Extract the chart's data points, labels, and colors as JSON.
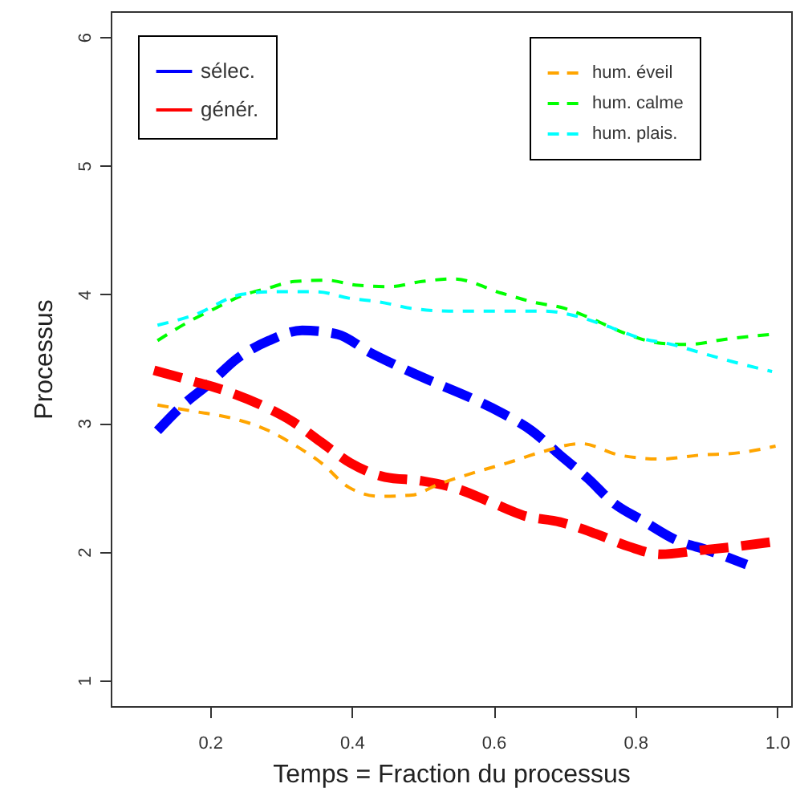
{
  "chart_data": {
    "type": "line",
    "xlabel": "Temps = Fraction du processus",
    "ylabel": "Processus",
    "xlim": [
      0.06,
      1.02
    ],
    "ylim": [
      0.8,
      6.2
    ],
    "xticks": [
      {
        "value": 0.2,
        "label": "0.2"
      },
      {
        "value": 0.4,
        "label": "0.4"
      },
      {
        "value": 0.6,
        "label": "0.6"
      },
      {
        "value": 0.8,
        "label": "0.8"
      },
      {
        "value": 1,
        "label": "1.0"
      }
    ],
    "yticks": [
      1,
      2,
      3,
      4,
      5,
      6
    ],
    "grid": false,
    "legend": "top",
    "series": [
      {
        "name": "sélec.",
        "color": "#0000ff",
        "line_style": "dashed",
        "x": [
          0.126,
          0.162,
          0.2,
          0.238,
          0.283,
          0.33,
          0.38,
          0.425,
          0.47,
          0.519,
          0.566,
          0.611,
          0.654,
          0.694,
          0.733,
          0.769,
          0.811,
          0.858,
          0.903,
          0.957
        ],
        "values": [
          2.94,
          3.14,
          3.31,
          3.5,
          3.64,
          3.72,
          3.69,
          3.55,
          3.43,
          3.31,
          3.2,
          3.08,
          2.94,
          2.75,
          2.57,
          2.38,
          2.24,
          2.09,
          2.01,
          1.9
        ]
      },
      {
        "name": "génér.",
        "color": "#ff0000",
        "line_style": "dashed",
        "x": [
          0.121,
          0.173,
          0.222,
          0.272,
          0.317,
          0.357,
          0.398,
          0.447,
          0.499,
          0.548,
          0.598,
          0.643,
          0.694,
          0.744,
          0.791,
          0.836,
          0.89,
          0.942,
          0.998
        ],
        "values": [
          3.41,
          3.33,
          3.25,
          3.14,
          3.01,
          2.85,
          2.69,
          2.58,
          2.55,
          2.49,
          2.38,
          2.28,
          2.23,
          2.14,
          2.04,
          1.98,
          2.01,
          2.04,
          2.08
        ]
      },
      {
        "name": "hum. éveil",
        "color": "#ffa500",
        "line_style": "dotted",
        "x": [
          0.126,
          0.178,
          0.229,
          0.283,
          0.319,
          0.357,
          0.396,
          0.44,
          0.485,
          0.521,
          0.582,
          0.62,
          0.665,
          0.724,
          0.778,
          0.836,
          0.89,
          0.948,
          0.998
        ],
        "values": [
          3.14,
          3.09,
          3.04,
          2.94,
          2.83,
          2.69,
          2.5,
          2.43,
          2.44,
          2.52,
          2.63,
          2.69,
          2.77,
          2.84,
          2.75,
          2.72,
          2.75,
          2.77,
          2.82
        ]
      },
      {
        "name": "hum. calme",
        "color": "#00ff00",
        "line_style": "dotted",
        "x": [
          0.126,
          0.171,
          0.207,
          0.245,
          0.283,
          0.319,
          0.364,
          0.409,
          0.454,
          0.499,
          0.544,
          0.611,
          0.656,
          0.701,
          0.739,
          0.784,
          0.836,
          0.874,
          0.926,
          0.993
        ],
        "values": [
          3.64,
          3.79,
          3.89,
          3.99,
          4.05,
          4.1,
          4.11,
          4.07,
          4.06,
          4.1,
          4.12,
          4.01,
          3.94,
          3.89,
          3.81,
          3.7,
          3.62,
          3.61,
          3.65,
          3.69
        ]
      },
      {
        "name": "hum. plais.",
        "color": "#00ffff",
        "line_style": "dotted",
        "x": [
          0.126,
          0.178,
          0.245,
          0.29,
          0.351,
          0.396,
          0.44,
          0.485,
          0.537,
          0.598,
          0.672,
          0.71,
          0.762,
          0.807,
          0.852,
          0.89,
          0.935,
          0.993
        ],
        "values": [
          3.76,
          3.84,
          4.0,
          4.02,
          4.02,
          3.97,
          3.94,
          3.89,
          3.87,
          3.87,
          3.87,
          3.84,
          3.75,
          3.66,
          3.61,
          3.55,
          3.48,
          3.4
        ]
      }
    ]
  }
}
